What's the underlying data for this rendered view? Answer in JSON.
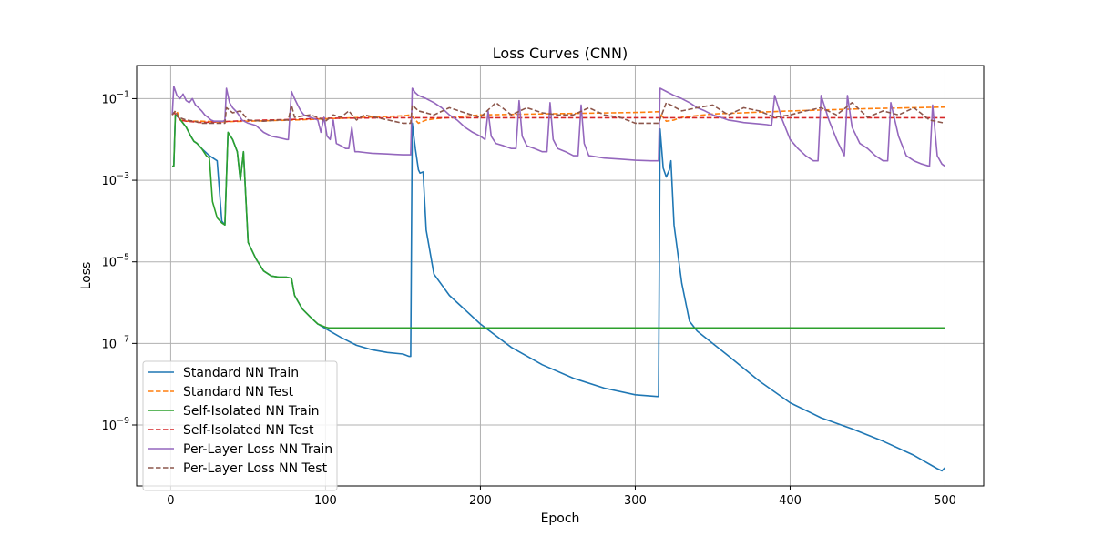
{
  "chart_data": {
    "type": "line",
    "title": "Loss Curves (CNN)",
    "xlabel": "Epoch",
    "ylabel": "Loss",
    "xlim": [
      -22,
      525
    ],
    "ylim": [
      3.2e-11,
      0.65
    ],
    "yscale": "log",
    "grid": true,
    "legend_position": "lower-left",
    "x_ticks": [
      0,
      100,
      200,
      300,
      400,
      500
    ],
    "x_tick_labels": [
      "0",
      "100",
      "200",
      "300",
      "400",
      "500"
    ],
    "y_ticks": [
      1e-09,
      1e-07,
      1e-05,
      0.001,
      0.1
    ],
    "y_tick_labels": [
      {
        "base": "10",
        "exp": "−9"
      },
      {
        "base": "10",
        "exp": "−7"
      },
      {
        "base": "10",
        "exp": "−5"
      },
      {
        "base": "10",
        "exp": "−3"
      },
      {
        "base": "10",
        "exp": "−1"
      }
    ],
    "series": [
      {
        "name": "Standard NN Train",
        "color": "#1f77b4",
        "dash": "solid",
        "x": [
          1,
          2,
          3,
          5,
          8,
          10,
          13,
          15,
          17,
          20,
          25,
          30,
          33,
          35,
          37,
          40,
          43,
          45,
          47,
          50,
          55,
          60,
          65,
          70,
          75,
          78,
          80,
          85,
          90,
          95,
          100,
          110,
          120,
          130,
          140,
          150,
          154,
          155,
          156,
          158,
          160,
          161,
          163,
          165,
          170,
          180,
          200,
          220,
          240,
          260,
          280,
          300,
          314,
          315,
          316,
          318,
          320,
          322,
          323,
          325,
          330,
          335,
          340,
          360,
          380,
          400,
          420,
          440,
          460,
          480,
          495,
          498,
          500
        ],
        "y": [
          0.0022,
          0.0022,
          0.04,
          0.035,
          0.025,
          0.02,
          0.012,
          0.009,
          0.008,
          0.006,
          0.004,
          0.003,
          0.0001,
          8e-05,
          0.015,
          0.01,
          0.005,
          0.001,
          0.005,
          3e-05,
          1.2e-05,
          6e-06,
          4.5e-06,
          4.2e-06,
          4.2e-06,
          4e-06,
          1.5e-06,
          7e-07,
          4.5e-07,
          3e-07,
          2.3e-07,
          1.4e-07,
          9e-08,
          7e-08,
          6e-08,
          5.5e-08,
          4.8e-08,
          4.8e-08,
          0.025,
          0.006,
          0.0018,
          0.0015,
          0.0016,
          6e-05,
          5e-06,
          1.5e-06,
          3e-07,
          8e-08,
          3e-08,
          1.4e-08,
          8e-09,
          5.5e-09,
          5e-09,
          5e-09,
          0.018,
          0.002,
          0.0012,
          0.0018,
          0.003,
          8e-05,
          3e-06,
          3.5e-07,
          2e-07,
          5e-08,
          1.2e-08,
          3.5e-09,
          1.5e-09,
          8e-10,
          4e-10,
          1.8e-10,
          8.5e-11,
          7.5e-11,
          9e-11
        ]
      },
      {
        "name": "Standard NN Test",
        "color": "#ff7f0e",
        "dash": "dashed",
        "x": [
          1,
          2,
          4,
          6,
          10,
          20,
          30,
          50,
          80,
          100,
          150,
          155,
          160,
          165,
          170,
          200,
          250,
          300,
          310,
          315,
          320,
          325,
          330,
          350,
          400,
          450,
          500
        ],
        "y": [
          0.04,
          0.045,
          0.05,
          0.03,
          0.028,
          0.028,
          0.027,
          0.028,
          0.03,
          0.032,
          0.038,
          0.04,
          0.025,
          0.03,
          0.032,
          0.04,
          0.043,
          0.046,
          0.047,
          0.048,
          0.028,
          0.03,
          0.035,
          0.042,
          0.05,
          0.057,
          0.062
        ]
      },
      {
        "name": "Self-Isolated NN Train",
        "color": "#2ca02c",
        "dash": "solid",
        "x": [
          1,
          2,
          3,
          5,
          8,
          10,
          13,
          15,
          17,
          20,
          23,
          25,
          27,
          30,
          33,
          35,
          37,
          40,
          43,
          45,
          47,
          50,
          55,
          60,
          65,
          70,
          75,
          78,
          80,
          85,
          90,
          95,
          100,
          102,
          110,
          150,
          200,
          250,
          300,
          350,
          400,
          450,
          500
        ],
        "y": [
          0.0022,
          0.0022,
          0.04,
          0.035,
          0.025,
          0.02,
          0.012,
          0.009,
          0.008,
          0.006,
          0.004,
          0.0035,
          0.0003,
          0.00012,
          9e-05,
          8e-05,
          0.015,
          0.01,
          0.005,
          0.001,
          0.005,
          3e-05,
          1.2e-05,
          6e-06,
          4.5e-06,
          4.2e-06,
          4.2e-06,
          4e-06,
          1.5e-06,
          7e-07,
          4.5e-07,
          3e-07,
          2.5e-07,
          2.4e-07,
          2.4e-07,
          2.4e-07,
          2.4e-07,
          2.4e-07,
          2.4e-07,
          2.4e-07,
          2.4e-07,
          2.4e-07,
          2.4e-07
        ]
      },
      {
        "name": "Self-Isolated NN Test",
        "color": "#d62728",
        "dash": "dashed",
        "x": [
          1,
          2,
          4,
          6,
          10,
          20,
          30,
          50,
          80,
          100,
          150,
          200,
          250,
          300,
          350,
          400,
          450,
          500
        ],
        "y": [
          0.04,
          0.045,
          0.04,
          0.03,
          0.028,
          0.026,
          0.027,
          0.029,
          0.031,
          0.033,
          0.034,
          0.034,
          0.034,
          0.034,
          0.034,
          0.034,
          0.034,
          0.034
        ]
      },
      {
        "name": "Per-Layer Loss NN Train",
        "color": "#9467bd",
        "dash": "solid",
        "x": [
          1,
          2,
          4,
          6,
          8,
          10,
          12,
          14,
          16,
          18,
          20,
          22,
          24,
          26,
          28,
          30,
          32,
          34,
          35,
          36,
          38,
          40,
          42,
          44,
          46,
          50,
          55,
          60,
          65,
          70,
          75,
          76,
          78,
          80,
          82,
          84,
          86,
          90,
          95,
          97,
          99,
          101,
          103,
          105,
          107,
          110,
          113,
          115,
          117,
          119,
          121,
          125,
          130,
          135,
          140,
          145,
          150,
          154,
          155,
          156,
          158,
          160,
          165,
          170,
          175,
          180,
          185,
          190,
          195,
          200,
          203,
          205,
          207,
          210,
          215,
          220,
          223,
          225,
          227,
          230,
          235,
          240,
          243,
          245,
          247,
          250,
          255,
          260,
          263,
          265,
          267,
          270,
          280,
          290,
          300,
          310,
          314,
          315,
          316,
          320,
          325,
          330,
          335,
          340,
          345,
          350,
          355,
          360,
          365,
          370,
          375,
          380,
          385,
          388,
          390,
          395,
          400,
          405,
          410,
          415,
          418,
          420,
          425,
          430,
          435,
          437,
          440,
          445,
          450,
          455,
          460,
          463,
          465,
          470,
          475,
          480,
          485,
          490,
          492,
          495,
          498,
          500
        ],
        "y": [
          0.04,
          0.2,
          0.12,
          0.1,
          0.13,
          0.09,
          0.08,
          0.1,
          0.07,
          0.06,
          0.05,
          0.04,
          0.035,
          0.03,
          0.028,
          0.028,
          0.028,
          0.028,
          0.03,
          0.18,
          0.08,
          0.06,
          0.05,
          0.04,
          0.03,
          0.025,
          0.022,
          0.015,
          0.012,
          0.011,
          0.01,
          0.01,
          0.15,
          0.1,
          0.07,
          0.05,
          0.04,
          0.035,
          0.03,
          0.015,
          0.035,
          0.012,
          0.01,
          0.03,
          0.008,
          0.007,
          0.006,
          0.006,
          0.02,
          0.005,
          0.005,
          0.0048,
          0.0046,
          0.0045,
          0.0044,
          0.0043,
          0.0042,
          0.0042,
          0.0042,
          0.18,
          0.14,
          0.12,
          0.1,
          0.08,
          0.06,
          0.04,
          0.03,
          0.02,
          0.015,
          0.012,
          0.01,
          0.05,
          0.012,
          0.008,
          0.007,
          0.006,
          0.006,
          0.09,
          0.012,
          0.007,
          0.006,
          0.005,
          0.005,
          0.08,
          0.01,
          0.006,
          0.005,
          0.004,
          0.004,
          0.07,
          0.008,
          0.004,
          0.0035,
          0.0033,
          0.0031,
          0.003,
          0.003,
          0.003,
          0.18,
          0.15,
          0.12,
          0.1,
          0.08,
          0.06,
          0.05,
          0.04,
          0.035,
          0.03,
          0.028,
          0.026,
          0.025,
          0.024,
          0.023,
          0.022,
          0.12,
          0.03,
          0.01,
          0.006,
          0.004,
          0.003,
          0.003,
          0.12,
          0.03,
          0.01,
          0.004,
          0.12,
          0.02,
          0.008,
          0.006,
          0.004,
          0.003,
          0.003,
          0.08,
          0.012,
          0.004,
          0.003,
          0.0025,
          0.0022,
          0.07,
          0.004,
          0.0025,
          0.0022
        ]
      },
      {
        "name": "Per-Layer Loss NN Test",
        "color": "#8c564b",
        "dash": "dashed",
        "x": [
          1,
          3,
          5,
          10,
          15,
          20,
          25,
          30,
          35,
          36,
          40,
          45,
          50,
          60,
          70,
          76,
          78,
          80,
          90,
          95,
          100,
          105,
          110,
          115,
          120,
          125,
          150,
          155,
          156,
          160,
          170,
          180,
          190,
          200,
          210,
          220,
          230,
          240,
          250,
          260,
          270,
          280,
          290,
          300,
          310,
          315,
          320,
          330,
          340,
          350,
          360,
          370,
          380,
          390,
          400,
          410,
          420,
          430,
          440,
          450,
          460,
          470,
          480,
          490,
          500
        ],
        "y": [
          0.04,
          0.05,
          0.035,
          0.03,
          0.028,
          0.025,
          0.025,
          0.025,
          0.025,
          0.06,
          0.045,
          0.05,
          0.03,
          0.028,
          0.03,
          0.03,
          0.07,
          0.035,
          0.04,
          0.035,
          0.028,
          0.04,
          0.035,
          0.05,
          0.03,
          0.04,
          0.025,
          0.025,
          0.07,
          0.05,
          0.04,
          0.06,
          0.045,
          0.035,
          0.08,
          0.04,
          0.06,
          0.045,
          0.04,
          0.04,
          0.06,
          0.04,
          0.035,
          0.025,
          0.025,
          0.025,
          0.08,
          0.05,
          0.06,
          0.07,
          0.04,
          0.06,
          0.05,
          0.035,
          0.04,
          0.05,
          0.06,
          0.04,
          0.08,
          0.035,
          0.05,
          0.04,
          0.06,
          0.03,
          0.025
        ]
      }
    ]
  }
}
